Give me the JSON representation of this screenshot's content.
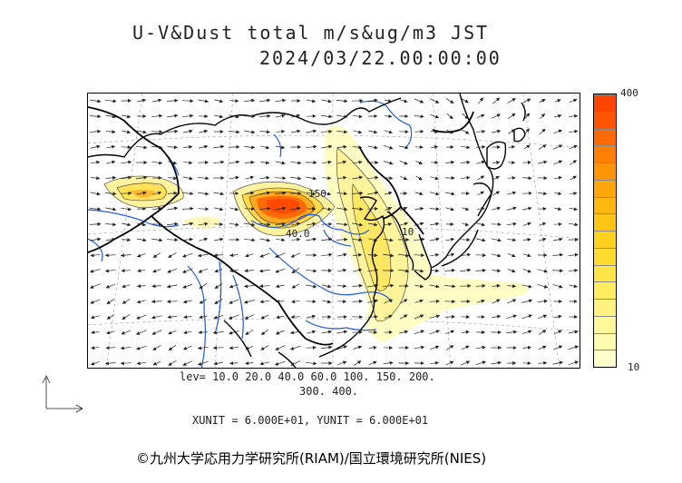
{
  "title": {
    "line1": "U-V&Dust total m/s&ug/m3 JST",
    "line2": "2024/03/22.00:00:00"
  },
  "colorbar": {
    "max_label": "400",
    "min_label": "10",
    "colors": [
      "#ffffcc",
      "#fffbb0",
      "#fff79a",
      "#fff27f",
      "#ffec60",
      "#ffe545",
      "#ffdb2e",
      "#ffd11f",
      "#ffc414",
      "#ffb60e",
      "#ffa60a",
      "#ff9407",
      "#ff8005",
      "#ff6a04",
      "#ff5502",
      "#ff4500"
    ]
  },
  "levels": {
    "line1": "lev= 10.0 20.0 40.0 60.0 100. 150. 200.",
    "line2": "300. 400."
  },
  "units": "XUNIT = 6.000E+01, YUNIT = 6.000E+01",
  "credit": "©九州大学応用力学研究所(RIAM)/国立環境研究所(NIES)",
  "map": {
    "contour_labels": [
      "150",
      "40.0",
      "10"
    ],
    "colors": {
      "coast": "#000000",
      "border": "#000000",
      "river": "#1e5ae6",
      "grid": "#9a9a9a",
      "vector": "#222222"
    }
  }
}
